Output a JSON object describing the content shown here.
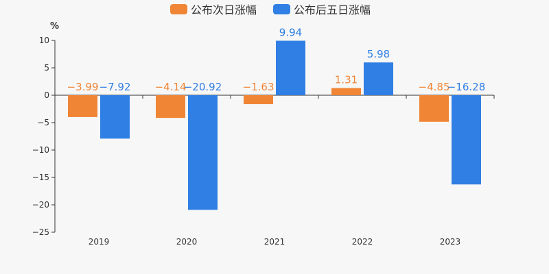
{
  "chart_data": {
    "type": "bar",
    "title": "",
    "xlabel": "",
    "ylabel": "%",
    "categories": [
      "2019",
      "2020",
      "2021",
      "2022",
      "2023"
    ],
    "series": [
      {
        "name": "公布次日涨幅",
        "color": "#f08536",
        "values": [
          -3.99,
          -4.14,
          -1.63,
          1.31,
          -4.85
        ]
      },
      {
        "name": "公布后五日涨幅",
        "color": "#2f7fe4",
        "values": [
          -7.92,
          -20.92,
          9.94,
          5.98,
          -16.28
        ]
      }
    ],
    "ylim": [
      -25,
      10
    ],
    "yticks": [
      -25,
      -20,
      -15,
      -10,
      -5,
      0,
      5,
      10
    ],
    "grid": false,
    "legend_position": "top-center"
  }
}
